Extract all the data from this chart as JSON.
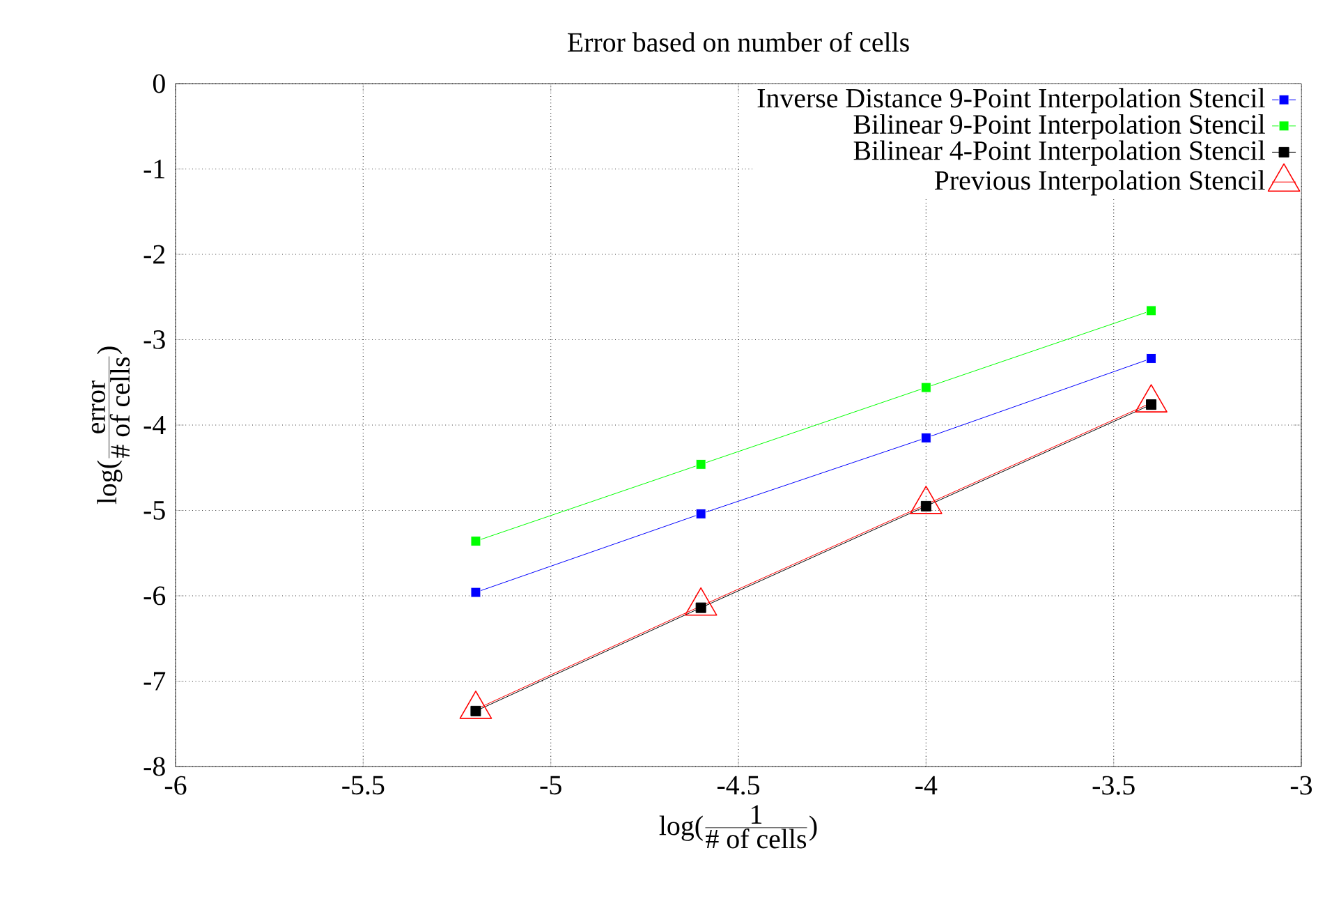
{
  "chart_data": {
    "type": "line",
    "title": "Error based on number of cells",
    "xlabel": "\\mbox{log(}\\frac{\\mbox{1}}{\\mbox{\\# of cells}}\\mbox{)}",
    "ylabel": "\\mbox{log(}\\frac{\\mbox{error}}{\\mbox{\\# of cells}}\\mbox{)}",
    "x": [
      -5.2,
      -4.6,
      -4.0,
      -3.4
    ],
    "series": [
      {
        "name": "Inverse Distance 9-Point Interpolation Stencil",
        "color": "#0000ff",
        "marker": "square",
        "values": [
          -5.96,
          -5.04,
          -4.15,
          -3.22
        ]
      },
      {
        "name": "Bilinear 9-Point Interpolation Stencil",
        "color": "#00ff00",
        "marker": "square",
        "values": [
          -5.36,
          -4.46,
          -3.56,
          -2.66
        ]
      },
      {
        "name": "Bilinear 4-Point Interpolation Stencil",
        "color": "#000000",
        "marker": "square",
        "values": [
          -7.35,
          -6.14,
          -4.95,
          -3.76
        ]
      },
      {
        "name": "Previous Interpolation Stencil",
        "color": "#ff0000",
        "marker": "triangle",
        "values": [
          -7.33,
          -6.12,
          -4.93,
          -3.74
        ]
      }
    ],
    "xlim": [
      -6,
      -3
    ],
    "ylim": [
      -8,
      0
    ],
    "xticks": [
      -6,
      -5.5,
      -5,
      -4.5,
      -4,
      -3.5,
      -3
    ],
    "yticks": [
      -8,
      -7,
      -6,
      -5,
      -4,
      -3,
      -2,
      -1,
      0
    ],
    "grid": true,
    "legend": "top right"
  }
}
